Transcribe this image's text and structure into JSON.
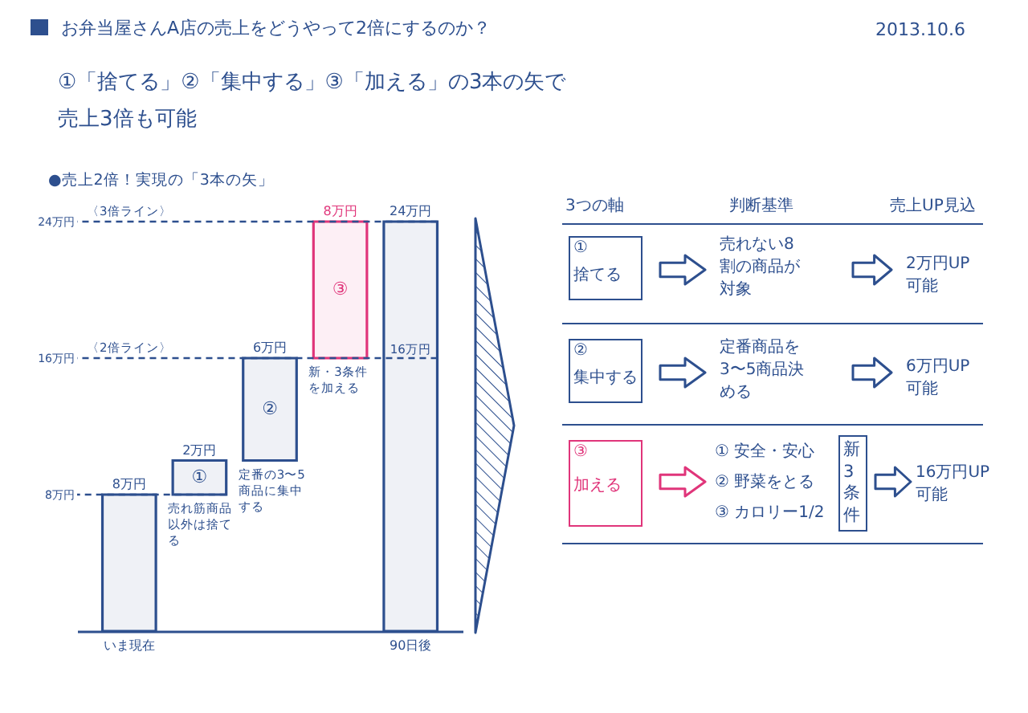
{
  "chart_data": [
    {
      "type": "bar",
      "title": "お弁当屋さんA店の売上をどうやって2倍にするのか？",
      "subtitle": "①「捨てる」②「集中する」③「加える」の3本の矢で売上3倍も可能",
      "categories": [
        "いま現在",
        null,
        null,
        null,
        "90日後"
      ],
      "values": [
        8,
        2,
        6,
        8,
        24
      ],
      "base": [
        0,
        8,
        10,
        16,
        0
      ],
      "colors": [
        "#2d4f8e",
        "#2d4f8e",
        "#2d4f8e",
        "#e0357a",
        "#2d4f8e"
      ],
      "value_labels": [
        "8万円",
        "2万円",
        "6万円",
        "8万円",
        "24万円"
      ],
      "ylim": [
        0,
        24
      ],
      "yticks": [
        {
          "value": 8,
          "label": "8万円"
        },
        {
          "value": 16,
          "label": "16万円"
        },
        {
          "value": 24,
          "label": "24万円"
        }
      ],
      "ref_lines": [
        {
          "axis": "y",
          "value": 24,
          "label": "〈3倍ライン〉",
          "line_style": "dashed"
        },
        {
          "axis": "y",
          "value": 16,
          "label": "〈2倍ライン〉",
          "line_style": "dashed"
        },
        {
          "axis": "y",
          "value": 8,
          "line_style": "dashed"
        }
      ],
      "annotations": [
        "2013.10.6",
        "●売上2倍！実現の「3本の矢」",
        "①",
        "②",
        "③",
        "売れ筋商品以外は捨てる",
        "定番の3〜5商品に集中する",
        "新・3条件を加える",
        "16万円"
      ]
    },
    {
      "type": "other",
      "annotations": [
        "3つの軸",
        "判断基準",
        "売上UP見込",
        "①",
        "捨てる",
        "売れない8割の商品が対象",
        "2万円UP可能",
        "②",
        "集中する",
        "定番商品を3〜5商品決める",
        "6万円UP可能",
        "③",
        "加える",
        "① 安全・安心",
        "② 野菜をとる",
        "③ カロリー1/2",
        "新3条件",
        "16万円UP可能"
      ]
    }
  ]
}
